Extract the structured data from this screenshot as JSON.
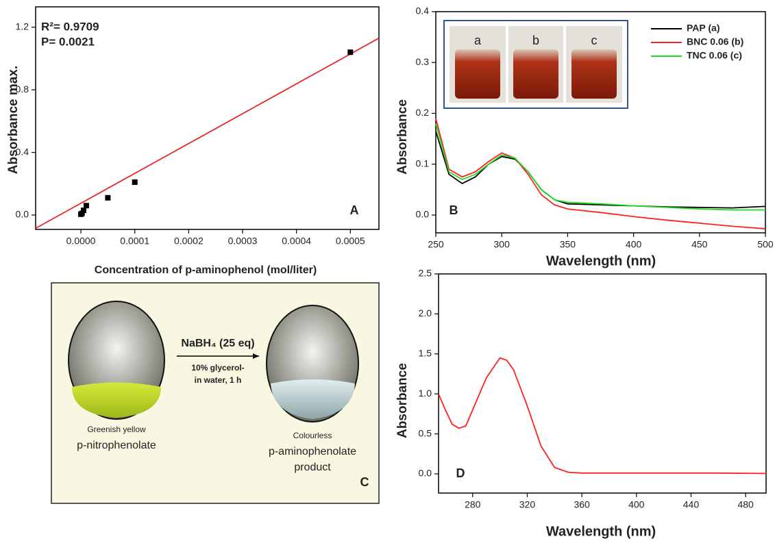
{
  "chart_data": [
    {
      "type": "scatter",
      "panel_label": "A",
      "xlabel": "Concentration of p-aminophenol (mol/liter)",
      "ylabel": "Absorbance max.",
      "annotations": [
        "R²= 0.9709",
        "P= 0.0021"
      ],
      "x": [
        0,
        2e-06,
        5e-06,
        1e-05,
        5e-05,
        0.0001,
        0.0005
      ],
      "values": [
        0.005,
        0.01,
        0.03,
        0.06,
        0.11,
        0.21,
        1.04
      ],
      "color": "#000000",
      "fit": {
        "x": [
          -8.4e-05,
          0.000553
        ],
        "values": [
          -0.085,
          1.13
        ],
        "color": "#e8262a"
      },
      "xlim": [
        -8.4e-05,
        0.000553
      ],
      "ylim": [
        -0.092,
        1.33
      ],
      "xticks": [
        {
          "value": 0,
          "label": "0.0000"
        },
        {
          "value": 0.0001,
          "label": "0.0001"
        },
        {
          "value": 0.0002,
          "label": "0.0002"
        },
        {
          "value": 0.0003,
          "label": "0.0003"
        },
        {
          "value": 0.0004,
          "label": "0.0004"
        },
        {
          "value": 0.0005,
          "label": "0.0005"
        }
      ],
      "yticks": [
        {
          "value": 0,
          "label": "0.0"
        },
        {
          "value": 0.4,
          "label": "0.4"
        },
        {
          "value": 0.8,
          "label": "0.8"
        },
        {
          "value": 1.2,
          "label": "1.2"
        }
      ]
    },
    {
      "type": "line",
      "panel_label": "B",
      "xlabel": "Wavelength (nm)",
      "ylabel": "Absorbance",
      "legend": "upper right",
      "inset_labels": [
        "a",
        "b",
        "c"
      ],
      "x": [
        250,
        260,
        270,
        280,
        290,
        300,
        310,
        320,
        330,
        340,
        350,
        375,
        400,
        425,
        450,
        475,
        500
      ],
      "series": [
        {
          "name": "PAP (a)",
          "color": "#000000",
          "values": [
            0.165,
            0.08,
            0.062,
            0.075,
            0.1,
            0.115,
            0.11,
            0.085,
            0.05,
            0.03,
            0.022,
            0.02,
            0.018,
            0.016,
            0.015,
            0.014,
            0.017
          ]
        },
        {
          "name": "BNC 0.06 (b)",
          "color": "#ff2020",
          "values": [
            0.19,
            0.09,
            0.075,
            0.085,
            0.105,
            0.122,
            0.112,
            0.08,
            0.04,
            0.02,
            0.012,
            0.005,
            -0.003,
            -0.01,
            -0.016,
            -0.022,
            -0.027
          ]
        },
        {
          "name": "TNC 0.06 (c)",
          "color": "#22dd22",
          "values": [
            0.18,
            0.085,
            0.07,
            0.08,
            0.1,
            0.118,
            0.112,
            0.085,
            0.05,
            0.03,
            0.025,
            0.022,
            0.018,
            0.015,
            0.012,
            0.01,
            0.01
          ]
        }
      ],
      "xlim": [
        250,
        500
      ],
      "ylim": [
        -0.035,
        0.4
      ],
      "xticks": [
        250,
        300,
        350,
        400,
        450,
        500
      ],
      "yticks": [
        {
          "value": 0,
          "label": "0.0"
        },
        {
          "value": 0.1,
          "label": "0.1"
        },
        {
          "value": 0.2,
          "label": "0.2"
        },
        {
          "value": 0.3,
          "label": "0.3"
        },
        {
          "value": 0.4,
          "label": "0.4"
        }
      ]
    },
    {
      "type": "line",
      "panel_label": "D",
      "xlabel": "Wavelength (nm)",
      "ylabel": "Absorbance",
      "x": [
        255,
        260,
        265,
        270,
        275,
        280,
        290,
        300,
        305,
        310,
        320,
        330,
        340,
        350,
        360,
        400,
        460,
        495
      ],
      "series": [
        {
          "color": "#ff2020",
          "values": [
            1.0,
            0.8,
            0.62,
            0.57,
            0.6,
            0.8,
            1.2,
            1.45,
            1.42,
            1.3,
            0.85,
            0.35,
            0.08,
            0.02,
            0.01,
            0.01,
            0.01,
            0.005
          ]
        }
      ],
      "xlim": [
        255,
        495
      ],
      "ylim": [
        -0.24,
        2.5
      ],
      "xticks": [
        280,
        320,
        360,
        400,
        440,
        480
      ],
      "yticks": [
        {
          "value": 0,
          "label": "0.0"
        },
        {
          "value": 0.5,
          "label": "0.5"
        },
        {
          "value": 1,
          "label": "1.0"
        },
        {
          "value": 1.5,
          "label": "1.5"
        },
        {
          "value": 2,
          "label": "2.0"
        },
        {
          "value": 2.5,
          "label": "2.5"
        }
      ]
    }
  ],
  "scheme": {
    "panel_label": "C",
    "reagent": "NaBH₄ (25 eq)",
    "conditions": [
      "10% glycerol-",
      "in water, 1 h"
    ],
    "start": {
      "color_name": "Greenish yellow",
      "name": [
        "p-nitrophenolate"
      ]
    },
    "end": {
      "color_name": "Colourless",
      "name": [
        "p-aminophenolate",
        "product"
      ]
    }
  }
}
